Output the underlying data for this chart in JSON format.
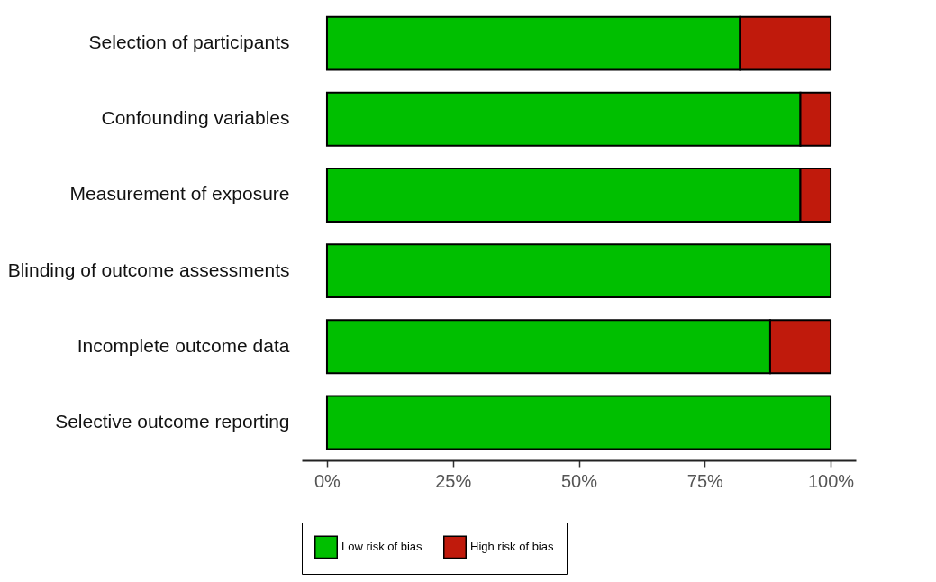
{
  "chart_data": {
    "type": "bar",
    "orientation": "horizontal",
    "stacked": true,
    "categories": [
      "Selection of participants",
      "Confounding variables",
      "Measurement of exposure",
      "Blinding of outcome assessments",
      "Incomplete outcome data",
      "Selective outcome reporting"
    ],
    "series": [
      {
        "name": "Low risk of bias",
        "color": "#00bf00",
        "values": [
          82,
          94,
          94,
          100,
          88,
          100
        ]
      },
      {
        "name": "High risk of bias",
        "color": "#c01a0c",
        "values": [
          18,
          6,
          6,
          null,
          12,
          null
        ]
      }
    ],
    "xlim": [
      -5,
      105
    ],
    "xticks": [
      {
        "value": 0,
        "label": "0%"
      },
      {
        "value": 25,
        "label": "25%"
      },
      {
        "value": 50,
        "label": "50%"
      },
      {
        "value": 75,
        "label": "75%"
      },
      {
        "value": 100,
        "label": "100%"
      }
    ],
    "grid": false,
    "legend": "bottom"
  }
}
